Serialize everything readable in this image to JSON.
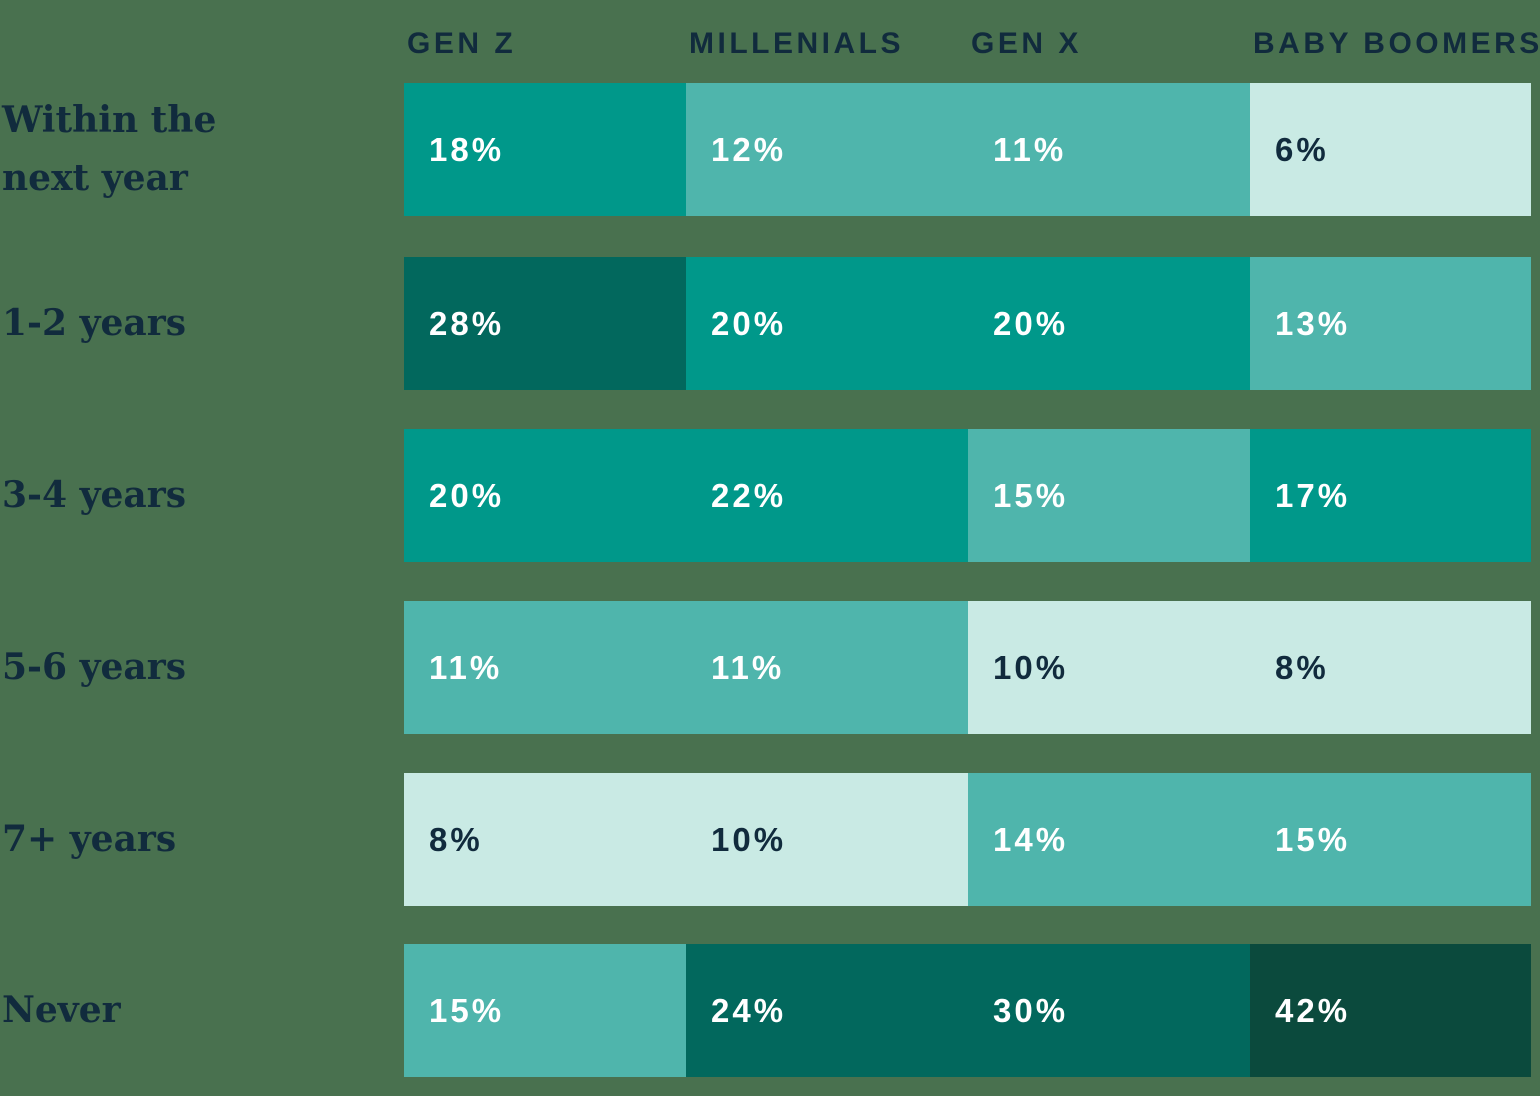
{
  "page": {
    "background_color": "#49714F"
  },
  "palette": {
    "background": "#49714F",
    "text_dark_navy": "#112B3D",
    "text_light": "#FFFFFF",
    "shades": {
      "mint": "#C9EAE4",
      "light": "#4FB5AC",
      "medium": "#00988A",
      "dark": "#02685D",
      "darkest": "#0B4A3D"
    }
  },
  "chart_data": {
    "type": "heatmap",
    "title": "",
    "columns": [
      "GEN Z",
      "MILLENIALS",
      "GEN X",
      "BABY BOOMERS"
    ],
    "rows": [
      "Within the next year",
      "1-2 years",
      "3-4 years",
      "5-6 years",
      "7+ years",
      "Never"
    ],
    "unit": "%",
    "values": [
      [
        18,
        12,
        11,
        6
      ],
      [
        28,
        20,
        20,
        13
      ],
      [
        20,
        22,
        15,
        17
      ],
      [
        11,
        11,
        10,
        8
      ],
      [
        8,
        10,
        14,
        15
      ],
      [
        15,
        24,
        30,
        42
      ]
    ],
    "cell_labels": [
      [
        "18%",
        "12%",
        "11%",
        "6%"
      ],
      [
        "28%",
        "20%",
        "20%",
        "13%"
      ],
      [
        "20%",
        "22%",
        "15%",
        "17%"
      ],
      [
        "11%",
        "11%",
        "10%",
        "8%"
      ],
      [
        "8%",
        "10%",
        "14%",
        "15%"
      ],
      [
        "15%",
        "24%",
        "30%",
        "42%"
      ]
    ],
    "cell_shades": [
      [
        "medium",
        "light",
        "light",
        "mint"
      ],
      [
        "dark",
        "medium",
        "medium",
        "light"
      ],
      [
        "medium",
        "medium",
        "light",
        "medium"
      ],
      [
        "light",
        "light",
        "mint",
        "mint"
      ],
      [
        "mint",
        "mint",
        "light",
        "light"
      ],
      [
        "light",
        "dark",
        "dark",
        "darkest"
      ]
    ],
    "value_text_color_on_mint": "#112B3D",
    "value_text_color_on_teal": "#FFFFFF",
    "legend": "none",
    "grid": "off"
  }
}
